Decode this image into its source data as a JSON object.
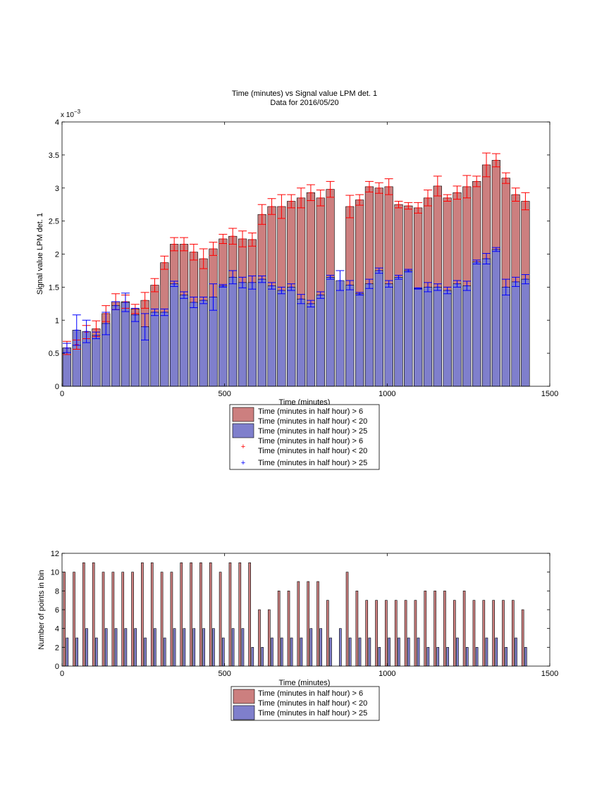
{
  "figure": {
    "title_line1": "Time (minutes) vs Signal value LPM det. 1",
    "title_line2": "Data for 2016/05/20"
  },
  "colors": {
    "red_fill": "#cc7f7f",
    "blue_fill": "#7f7fcc",
    "red_err": "#ff0000",
    "blue_err": "#0000ff",
    "axis": "#000000"
  },
  "chart_data": [
    {
      "type": "bar",
      "xlabel": "Time (minutes)",
      "ylabel": "Signal value LPM det. 1",
      "y_exponent_label": "x 10",
      "y_exponent_power": "−3",
      "xlim": [
        0,
        1500
      ],
      "ylim": [
        0,
        4
      ],
      "x_ticks": [
        "0",
        "500",
        "1000",
        "1500"
      ],
      "y_ticks": [
        "0",
        "0.5",
        "1",
        "1.5",
        "2",
        "2.5",
        "3",
        "3.5",
        "4"
      ],
      "grid": false,
      "legend_position": "below",
      "legend": [
        {
          "label1": "Time (minutes in half hour) > 6",
          "label2": "Time (minutes in half hour) < 20",
          "kind": "patch",
          "color": "red"
        },
        {
          "label1": "Time (minutes in half hour) > 25",
          "label2": "",
          "kind": "patch",
          "color": "blue"
        },
        {
          "label1": "Time (minutes in half hour) > 6",
          "label2": "Time (minutes in half hour) < 20",
          "kind": "marker",
          "color": "red"
        },
        {
          "label1": "Time (minutes in half hour) > 25",
          "label2": "",
          "kind": "marker",
          "color": "blue"
        }
      ],
      "x": [
        15,
        45,
        75,
        105,
        135,
        165,
        195,
        225,
        255,
        285,
        315,
        345,
        375,
        405,
        435,
        465,
        495,
        525,
        555,
        585,
        615,
        645,
        675,
        705,
        735,
        765,
        795,
        825,
        855,
        885,
        915,
        945,
        975,
        1005,
        1035,
        1065,
        1095,
        1125,
        1155,
        1185,
        1215,
        1245,
        1275,
        1305,
        1335,
        1365,
        1395,
        1425
      ],
      "series": [
        {
          "color": "red",
          "values_e3": [
            0.58,
            0.63,
            0.82,
            0.87,
            1.1,
            1.28,
            1.28,
            1.17,
            1.3,
            1.53,
            1.87,
            2.15,
            2.15,
            2.03,
            1.93,
            2.08,
            2.23,
            2.27,
            2.23,
            2.22,
            2.6,
            2.72,
            2.72,
            2.8,
            2.85,
            2.93,
            2.85,
            2.98,
            null,
            2.72,
            2.82,
            3.02,
            3.0,
            3.02,
            2.75,
            2.73,
            2.7,
            2.85,
            3.03,
            2.85,
            2.93,
            3.02,
            3.1,
            3.35,
            3.42,
            3.15,
            2.9,
            2.8
          ],
          "errors_e3": [
            0.1,
            0.07,
            0.1,
            0.12,
            0.12,
            0.12,
            0.1,
            0.07,
            0.12,
            0.1,
            0.1,
            0.1,
            0.1,
            0.12,
            0.15,
            0.1,
            0.07,
            0.12,
            0.12,
            0.1,
            0.15,
            0.12,
            0.18,
            0.1,
            0.15,
            0.12,
            0.12,
            0.12,
            null,
            0.17,
            0.08,
            0.08,
            0.08,
            0.12,
            0.05,
            0.05,
            0.08,
            0.12,
            0.15,
            0.05,
            0.1,
            0.17,
            0.08,
            0.18,
            0.1,
            0.08,
            0.1,
            0.13
          ]
        },
        {
          "color": "blue",
          "values_e3": [
            0.58,
            0.85,
            0.83,
            0.77,
            0.95,
            1.22,
            1.27,
            1.08,
            0.9,
            1.12,
            1.12,
            1.55,
            1.38,
            1.27,
            1.3,
            1.35,
            1.52,
            1.65,
            1.57,
            1.57,
            1.62,
            1.52,
            1.45,
            1.5,
            1.32,
            1.25,
            1.38,
            1.65,
            1.6,
            1.53,
            1.4,
            1.55,
            1.75,
            1.55,
            1.65,
            1.75,
            1.48,
            1.5,
            1.5,
            1.45,
            1.55,
            1.52,
            1.88,
            1.93,
            2.07,
            1.5,
            1.58,
            1.62
          ],
          "errors_e3": [
            0.07,
            0.23,
            0.17,
            0.05,
            0.17,
            0.06,
            0.14,
            0.1,
            0.2,
            0.05,
            0.05,
            0.04,
            0.05,
            0.08,
            0.05,
            0.2,
            0.02,
            0.1,
            0.08,
            0.1,
            0.05,
            0.05,
            0.05,
            0.05,
            0.07,
            0.05,
            0.05,
            0.03,
            0.15,
            0.07,
            0.02,
            0.07,
            0.04,
            0.05,
            0.03,
            0.02,
            0.01,
            0.07,
            0.05,
            0.05,
            0.05,
            0.07,
            0.03,
            0.08,
            0.03,
            0.12,
            0.07,
            0.07
          ]
        }
      ]
    },
    {
      "type": "bar",
      "xlabel": "Time (minutes)",
      "ylabel": "Number of points in bin",
      "xlim": [
        0,
        1500
      ],
      "ylim": [
        0,
        12
      ],
      "x_ticks": [
        "0",
        "500",
        "1000",
        "1500"
      ],
      "y_ticks": [
        "0",
        "2",
        "4",
        "6",
        "8",
        "10",
        "12"
      ],
      "grid": false,
      "legend_position": "below",
      "legend": [
        {
          "label1": "Time (minutes in half hour) > 6",
          "label2": "Time (minutes in half hour) < 20",
          "kind": "patch",
          "color": "red"
        },
        {
          "label1": "Time (minutes in half hour) > 25",
          "label2": "",
          "kind": "patch",
          "color": "blue"
        }
      ],
      "x": [
        15,
        45,
        75,
        105,
        135,
        165,
        195,
        225,
        255,
        285,
        315,
        345,
        375,
        405,
        435,
        465,
        495,
        525,
        555,
        585,
        615,
        645,
        675,
        705,
        735,
        765,
        795,
        825,
        855,
        885,
        915,
        945,
        975,
        1005,
        1035,
        1065,
        1095,
        1125,
        1155,
        1185,
        1215,
        1245,
        1275,
        1305,
        1335,
        1365,
        1395,
        1425
      ],
      "series": [
        {
          "color": "red",
          "values": [
            10,
            10,
            11,
            11,
            10,
            10,
            10,
            10,
            11,
            11,
            10,
            10,
            11,
            11,
            11,
            11,
            10,
            11,
            11,
            11,
            6,
            6,
            8,
            8,
            9,
            9,
            9,
            7,
            null,
            10,
            8,
            7,
            7,
            7,
            7,
            7,
            7,
            8,
            8,
            8,
            7,
            8,
            7,
            7,
            7,
            7,
            7,
            6
          ]
        },
        {
          "color": "blue",
          "values": [
            3,
            3,
            4,
            3,
            4,
            4,
            4,
            4,
            3,
            4,
            3,
            4,
            4,
            4,
            4,
            4,
            3,
            4,
            4,
            2,
            2,
            3,
            3,
            3,
            3,
            4,
            4,
            3,
            4,
            3,
            3,
            3,
            2,
            3,
            3,
            3,
            3,
            2,
            2,
            2,
            3,
            2,
            2,
            3,
            3,
            2,
            3,
            2
          ]
        }
      ]
    }
  ]
}
